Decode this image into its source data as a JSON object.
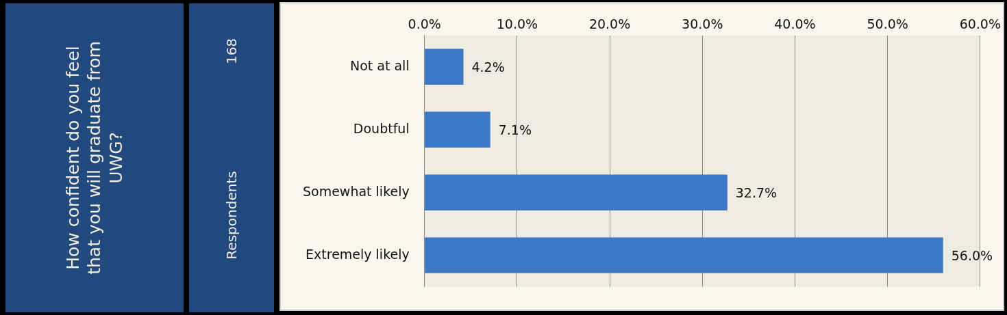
{
  "chart_data": {
    "type": "bar",
    "orientation": "horizontal",
    "title": "How confident do you feel that you will graduate from UWG?",
    "annotations": [
      "168",
      "Respondents"
    ],
    "categories": [
      "Not at all",
      "Doubtful",
      "Somewhat likely",
      "Extremely likely"
    ],
    "values": [
      4.2,
      7.1,
      32.7,
      56.0
    ],
    "color": "#3c78c6",
    "value_labels": [
      "4.2%",
      "7.1%",
      "32.7%",
      "56.0%"
    ],
    "xlim": [
      0,
      60
    ],
    "xticks": [
      {
        "value": 0,
        "label": "0.0%"
      },
      {
        "value": 10,
        "label": "10.0%"
      },
      {
        "value": 20,
        "label": "20.0%"
      },
      {
        "value": 30,
        "label": "30.0%"
      },
      {
        "value": 40,
        "label": "40.0%"
      },
      {
        "value": 50,
        "label": "50.0%"
      },
      {
        "value": 60,
        "label": "60.0%"
      }
    ],
    "grid": "x"
  }
}
